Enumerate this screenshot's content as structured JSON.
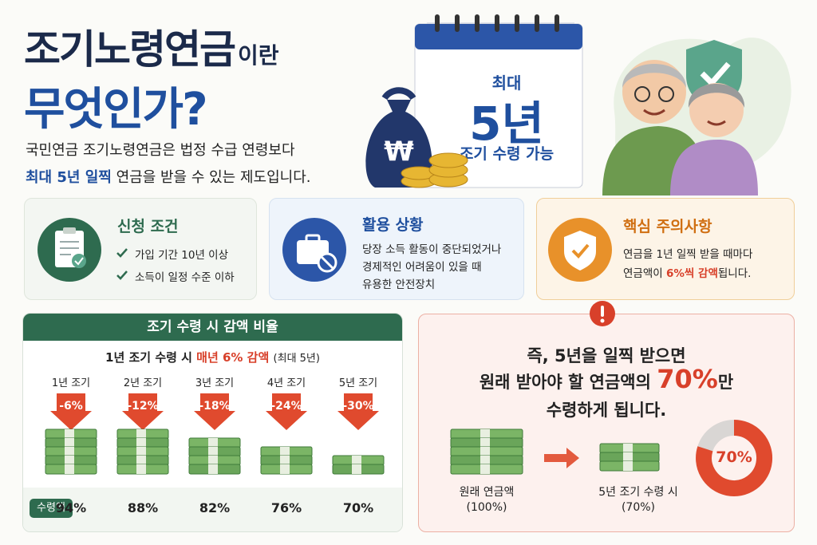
{
  "header": {
    "title_main": "조기노령연금",
    "title_suffix": "이란",
    "title_line2": "무엇인가?",
    "desc_line1": "국민연금 조기노령연금은 법정 수급 연령보다",
    "desc_line2_highlight": "최대 5년 일찍",
    "desc_line2_rest": "연금을 받을 수 있는 제도입니다."
  },
  "calendar": {
    "line1": "최대",
    "line2": "5년",
    "line3": "조기 수령 가능"
  },
  "bag_symbol": "₩",
  "cards": [
    {
      "title": "신청 조건",
      "items": [
        "가입 기간 10년 이상",
        "소득이 일정 수준 이하"
      ]
    },
    {
      "title": "활용 상황",
      "lines": [
        "당장 소득 활동이 중단되었거나",
        "경제적인 어려움이 있을 때",
        "유용한 안전장치"
      ]
    },
    {
      "title": "핵심 주의사항",
      "line1": "연금을 1년 일찍 받을 때마다",
      "line2_pre": "연금액이",
      "line2_highlight": "6%씩 감액",
      "line2_post": "됩니다."
    }
  ],
  "reduction": {
    "title": "조기 수령 시 감액 비율",
    "subtitle_pre": "1년 조기 수령 시",
    "subtitle_highlight": "매년 6% 감액",
    "subtitle_post": "(최대 5년)",
    "columns": [
      "1년 조기",
      "2년 조기",
      "3년 조기",
      "4년 조기",
      "5년 조기"
    ],
    "cuts": [
      "-6%",
      "-12%",
      "-18%",
      "-24%",
      "-30%"
    ],
    "received_label": "수령액",
    "received": [
      "94%",
      "88%",
      "82%",
      "76%",
      "70%"
    ]
  },
  "summary": {
    "line1": "즉, 5년을 일찍 받으면",
    "line2_pre": "원래 받아야 할 연금액의",
    "line2_highlight": "70%",
    "line2_post": "만",
    "line3": "수령하게 됩니다.",
    "left_label": "원래 연금액",
    "left_pct": "(100%)",
    "right_label": "5년 조기 수령 시",
    "right_pct": "(70%)",
    "donut_label": "70%"
  }
}
